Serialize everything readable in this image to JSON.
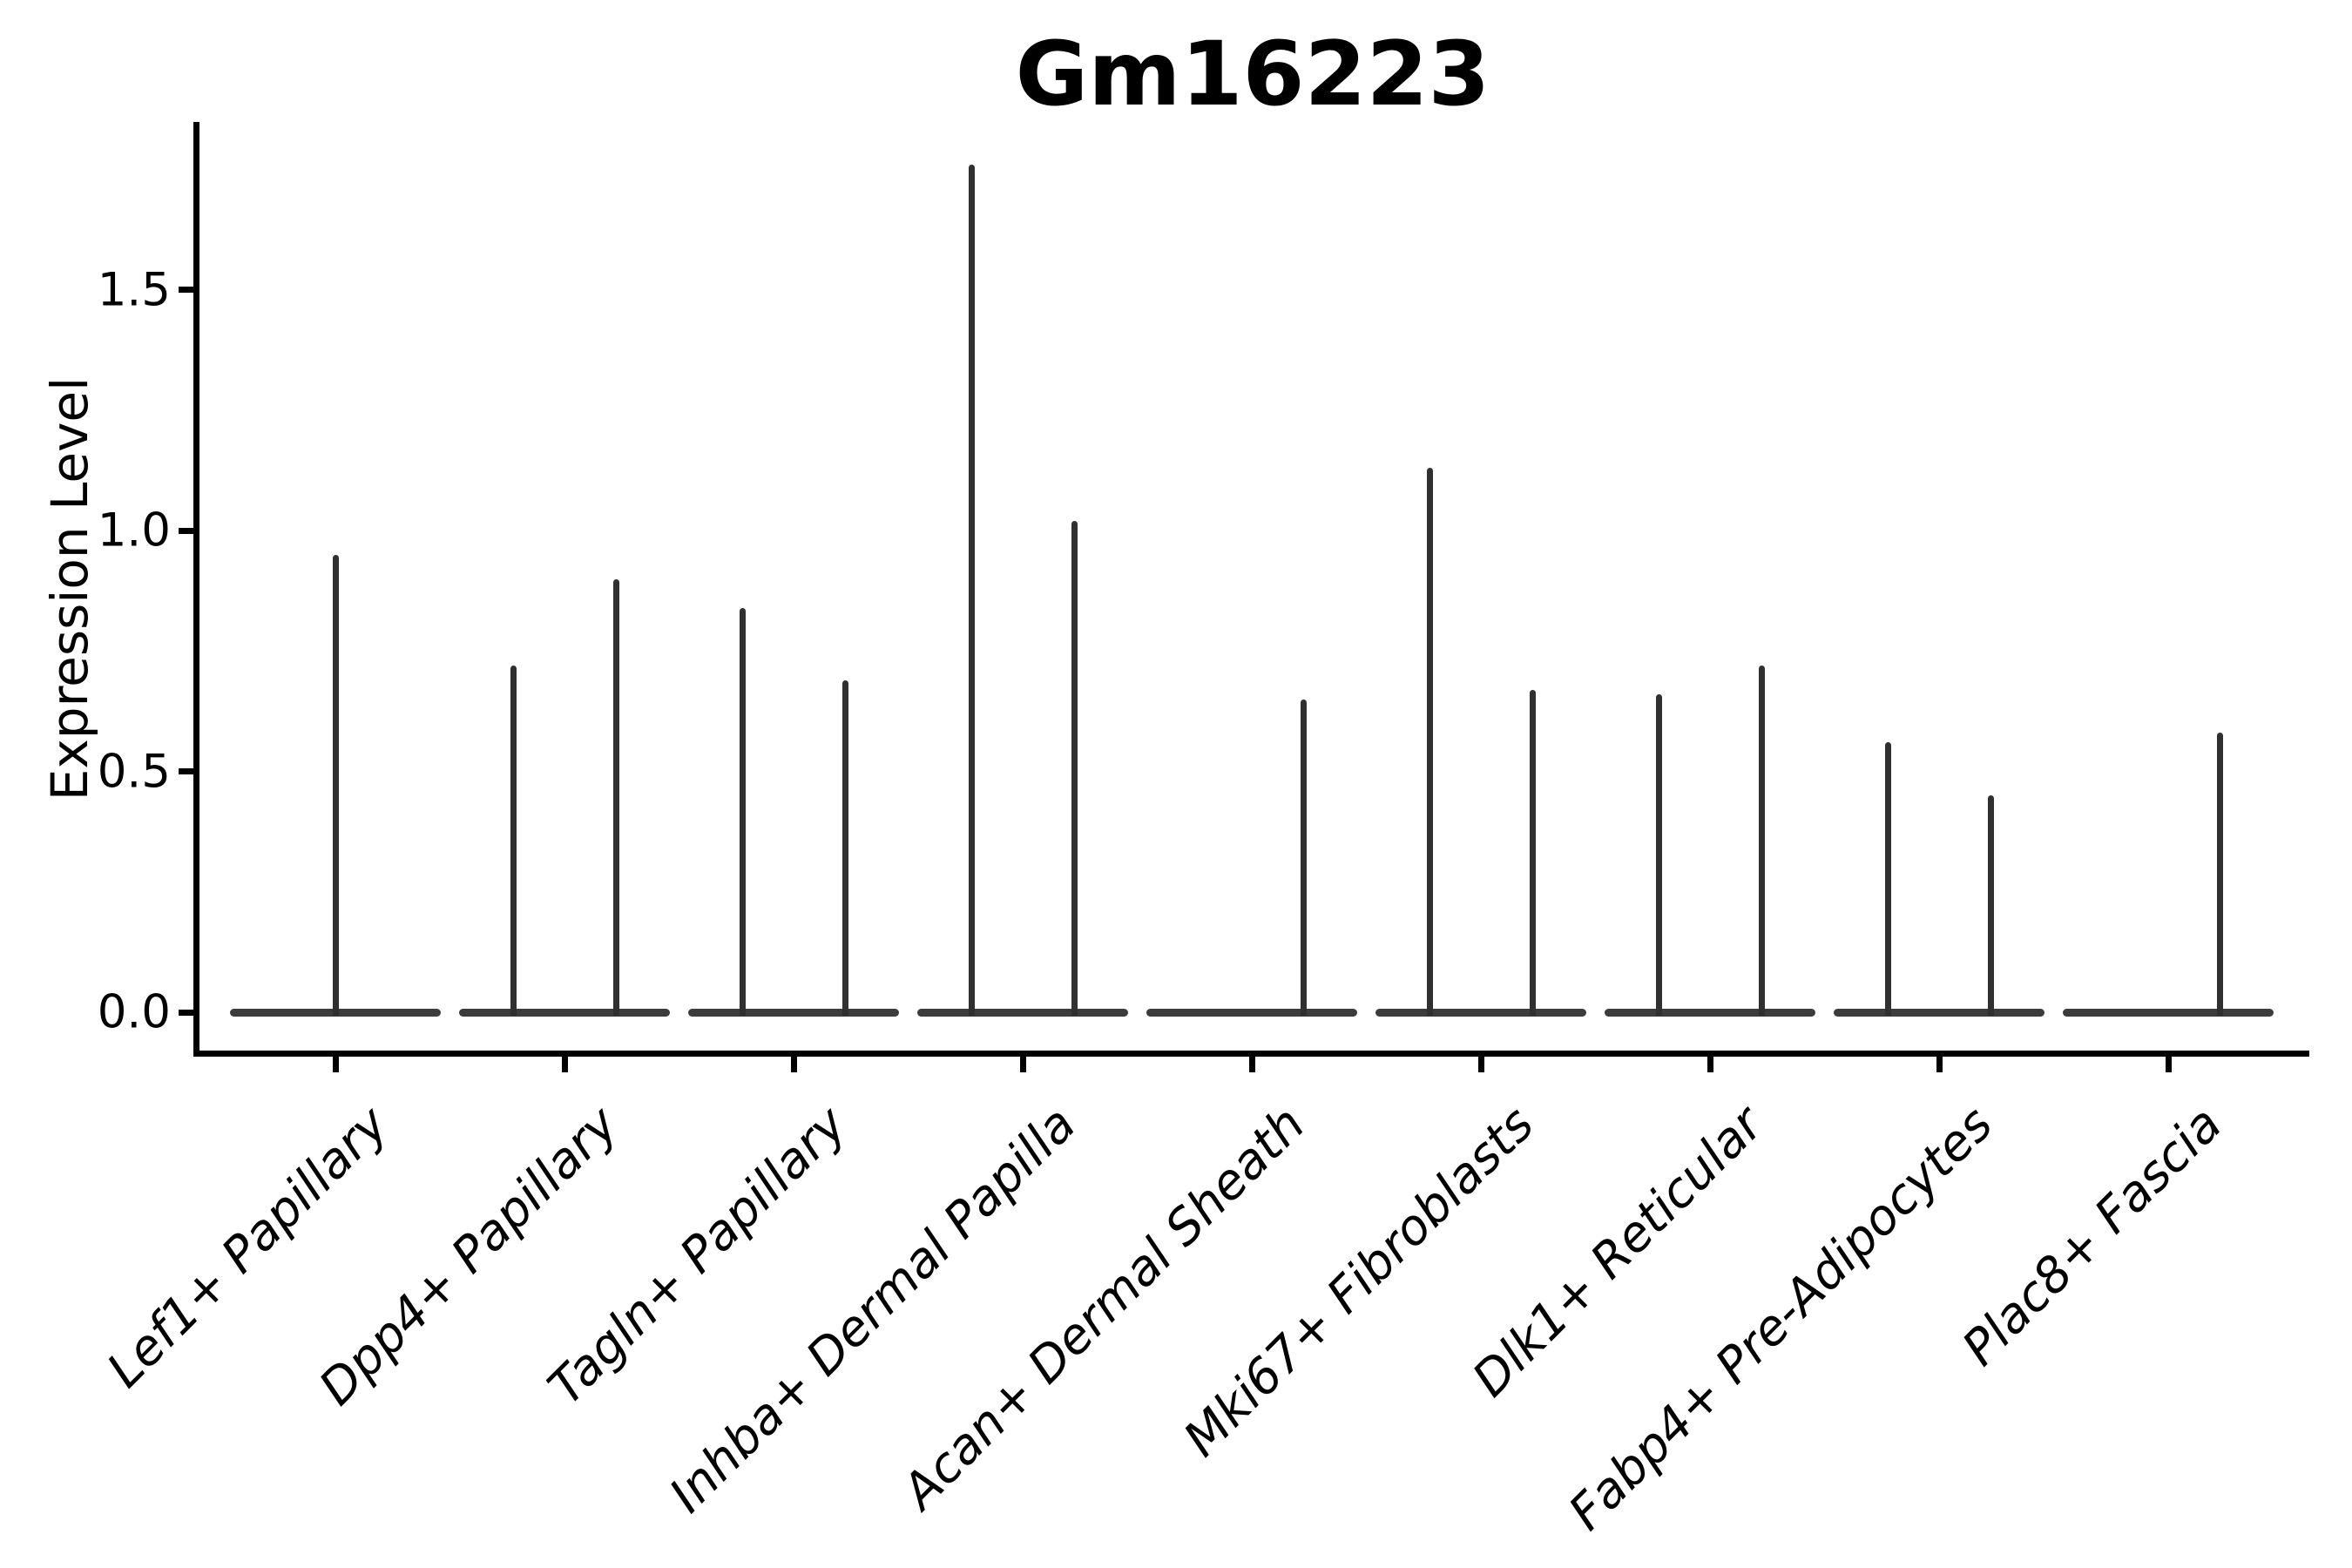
{
  "figure": {
    "title": "Gm16223",
    "ylabel": "Expression Level"
  },
  "chart_data": {
    "type": "violin",
    "title": "Gm16223",
    "xlabel": "",
    "ylabel": "Expression Level",
    "ylim": [
      -0.09,
      1.85
    ],
    "grid": false,
    "legend": null,
    "yticks": [
      {
        "value": 0.0,
        "label": "0.0"
      },
      {
        "value": 0.5,
        "label": "0.5"
      },
      {
        "value": 1.0,
        "label": "1.0"
      },
      {
        "value": 1.5,
        "label": "1.5"
      }
    ],
    "categories": [
      "Lef1+ Papillary",
      "Dpp4+ Papillary",
      "Tagln+ Papillary",
      "Inhba+ Dermal Papilla",
      "Acan+ Dermal Sheath",
      "Mki67+ Fibroblasts",
      "Dlk1+ Reticular",
      "Fabp4+ Pre-Adipocytes",
      "Plac8+ Fascia"
    ],
    "baseline_value": 0.0,
    "groups": [
      {
        "category": "Lef1+ Papillary",
        "violins": [
          {
            "slot": "center",
            "max_expression": 0.95
          }
        ]
      },
      {
        "category": "Dpp4+ Papillary",
        "violins": [
          {
            "slot": "left",
            "max_expression": 0.72
          },
          {
            "slot": "right",
            "max_expression": 0.9
          }
        ]
      },
      {
        "category": "Tagln+ Papillary",
        "violins": [
          {
            "slot": "left",
            "max_expression": 0.84
          },
          {
            "slot": "right",
            "max_expression": 0.69
          }
        ]
      },
      {
        "category": "Inhba+ Dermal Papilla",
        "violins": [
          {
            "slot": "left",
            "max_expression": 1.76
          },
          {
            "slot": "right",
            "max_expression": 1.02
          }
        ]
      },
      {
        "category": "Acan+ Dermal Sheath",
        "violins": [
          {
            "slot": "right",
            "max_expression": 0.65
          }
        ]
      },
      {
        "category": "Mki67+ Fibroblasts",
        "violins": [
          {
            "slot": "left",
            "max_expression": 1.13
          },
          {
            "slot": "right",
            "max_expression": 0.67
          }
        ]
      },
      {
        "category": "Dlk1+ Reticular",
        "violins": [
          {
            "slot": "left",
            "max_expression": 0.66
          },
          {
            "slot": "right",
            "max_expression": 0.72
          }
        ]
      },
      {
        "category": "Fabp4+ Pre-Adipocytes",
        "violins": [
          {
            "slot": "left",
            "max_expression": 0.56
          },
          {
            "slot": "right",
            "max_expression": 0.45
          }
        ]
      },
      {
        "category": "Plac8+ Fascia",
        "violins": [
          {
            "slot": "right",
            "max_expression": 0.58
          }
        ]
      }
    ],
    "colors": {
      "violin_stroke": "#303030",
      "violin_base": "#3c3c3c",
      "axis": "#000000",
      "text": "#000000",
      "background": "#ffffff"
    }
  }
}
